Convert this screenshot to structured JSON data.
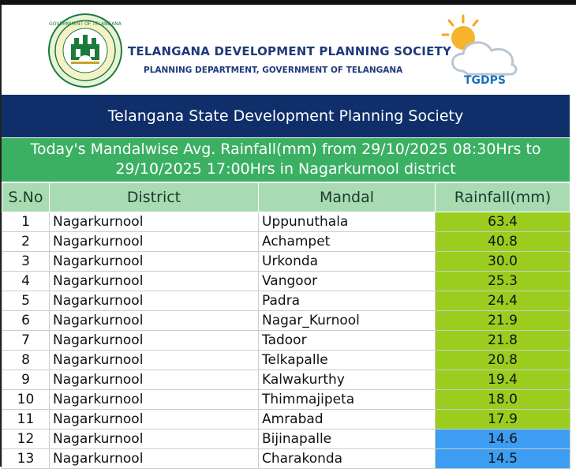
{
  "header": {
    "org_name": "TELANGANA DEVELOPMENT PLANNING SOCIETY",
    "org_sub": "PLANNING DEPARTMENT, GOVERNMENT OF TELANGANA",
    "logo_text": "TGDPS",
    "emblem_text": "GOVERNMENT OF TELANGANA"
  },
  "banner": {
    "title": "Telangana State Development Planning Society"
  },
  "subtitle": {
    "line1": "Today's Mandalwise Avg. Rainfall(mm) from 29/10/2025 08:30Hrs to",
    "line2": "29/10/2025 17:00Hrs in Nagarkurnool district"
  },
  "table": {
    "headers": {
      "sno": "S.No",
      "district": "District",
      "mandal": "Mandal",
      "rainfall": "Rainfall(mm)"
    },
    "rows": [
      {
        "sno": "1",
        "district": "Nagarkurnool",
        "mandal": "Uppunuthala",
        "rainfall": "63.4",
        "color": "#9acd1e"
      },
      {
        "sno": "2",
        "district": "Nagarkurnool",
        "mandal": "Achampet",
        "rainfall": "40.8",
        "color": "#9acd1e"
      },
      {
        "sno": "3",
        "district": "Nagarkurnool",
        "mandal": "Urkonda",
        "rainfall": "30.0",
        "color": "#9acd1e"
      },
      {
        "sno": "4",
        "district": "Nagarkurnool",
        "mandal": "Vangoor",
        "rainfall": "25.3",
        "color": "#9acd1e"
      },
      {
        "sno": "5",
        "district": "Nagarkurnool",
        "mandal": "Padra",
        "rainfall": "24.4",
        "color": "#9acd1e"
      },
      {
        "sno": "6",
        "district": "Nagarkurnool",
        "mandal": "Nagar_Kurnool",
        "rainfall": "21.9",
        "color": "#9acd1e"
      },
      {
        "sno": "7",
        "district": "Nagarkurnool",
        "mandal": "Tadoor",
        "rainfall": "21.8",
        "color": "#9acd1e"
      },
      {
        "sno": "8",
        "district": "Nagarkurnool",
        "mandal": "Telkapalle",
        "rainfall": "20.8",
        "color": "#9acd1e"
      },
      {
        "sno": "9",
        "district": "Nagarkurnool",
        "mandal": "Kalwakurthy",
        "rainfall": "19.4",
        "color": "#9acd1e"
      },
      {
        "sno": "10",
        "district": "Nagarkurnool",
        "mandal": "Thimmajipeta",
        "rainfall": "18.0",
        "color": "#9acd1e"
      },
      {
        "sno": "11",
        "district": "Nagarkurnool",
        "mandal": "Amrabad",
        "rainfall": "17.9",
        "color": "#9acd1e"
      },
      {
        "sno": "12",
        "district": "Nagarkurnool",
        "mandal": "Bijinapalle",
        "rainfall": "14.6",
        "color": "#3d9df2"
      },
      {
        "sno": "13",
        "district": "Nagarkurnool",
        "mandal": "Charakonda",
        "rainfall": "14.5",
        "color": "#3d9df2"
      }
    ]
  }
}
